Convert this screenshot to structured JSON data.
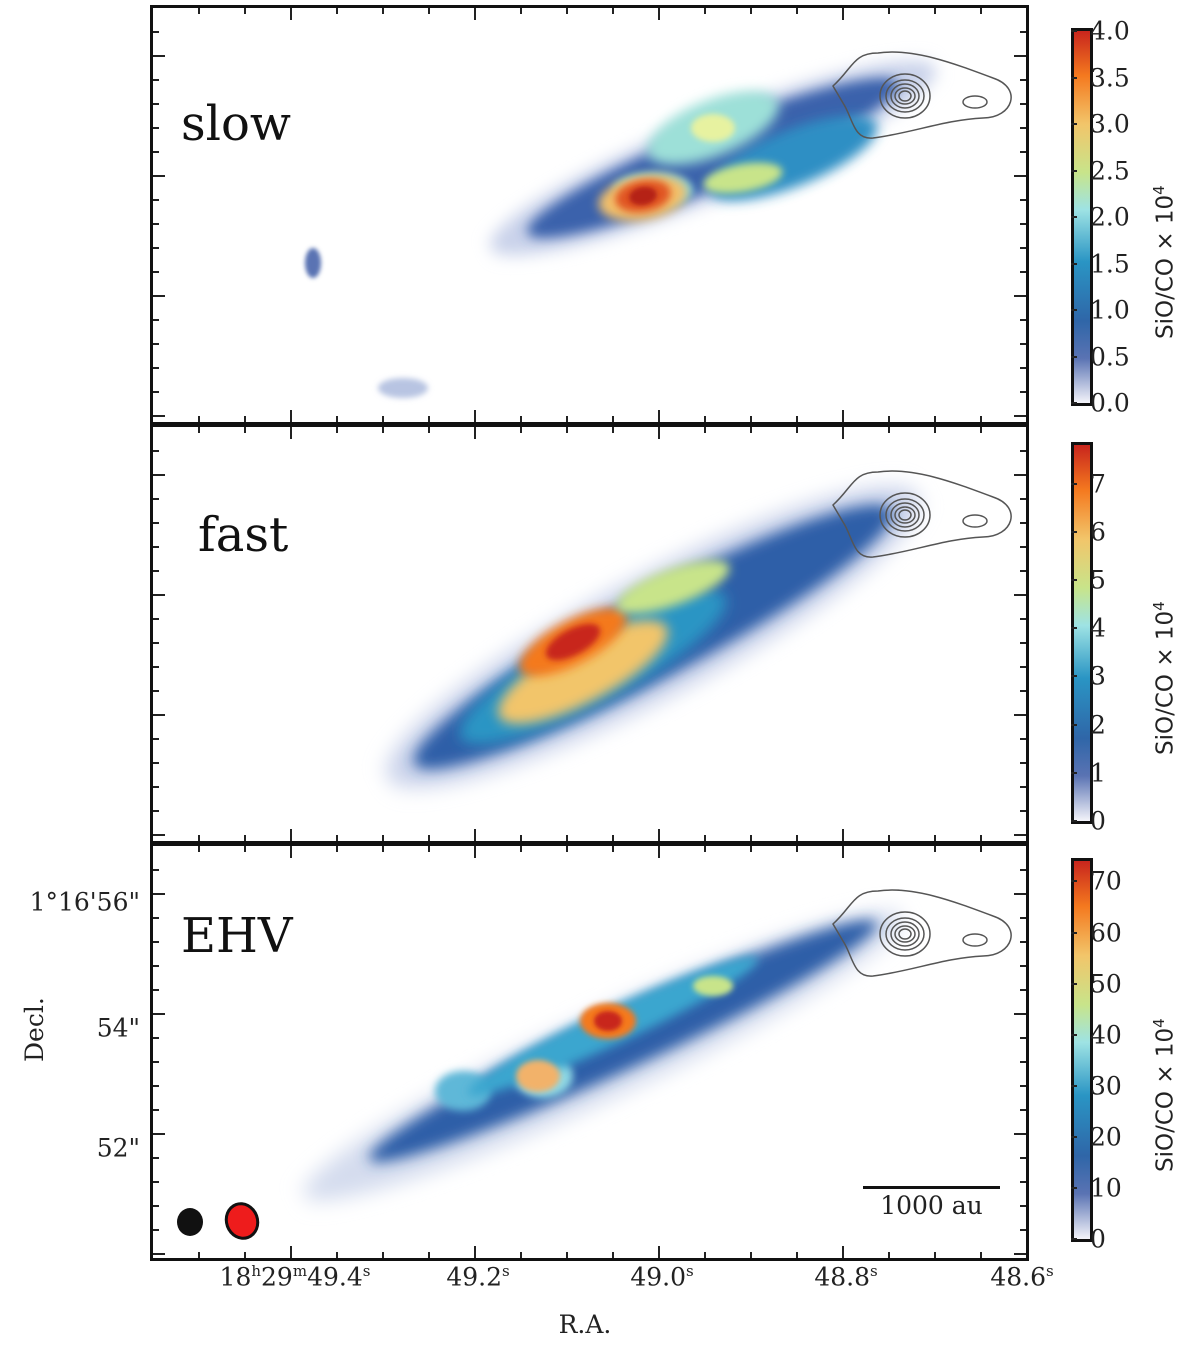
{
  "chart_data": [
    {
      "type": "heatmap",
      "panel": "slow",
      "colorbar": {
        "label": "SiO/CO × 10",
        "label_exp": "4",
        "range": [
          0,
          4.0
        ],
        "ticks": [
          "0.0",
          "0.5",
          "1.0",
          "1.5",
          "2.0",
          "2.5",
          "3.0",
          "3.5",
          "4.0"
        ],
        "tick_values": [
          0,
          0.5,
          1,
          1.5,
          2,
          2.5,
          3,
          3.5,
          4
        ]
      },
      "peak_value": 3.9
    },
    {
      "type": "heatmap",
      "panel": "fast",
      "colorbar": {
        "label": "SiO/CO × 10",
        "label_exp": "4",
        "range": [
          0,
          7.8
        ],
        "ticks": [
          "0",
          "1",
          "2",
          "3",
          "4",
          "5",
          "6",
          "7"
        ],
        "tick_values": [
          0,
          1,
          2,
          3,
          4,
          5,
          6,
          7
        ]
      },
      "peak_value": 7.5
    },
    {
      "type": "heatmap",
      "panel": "EHV",
      "colorbar": {
        "label": "SiO/CO × 10",
        "label_exp": "4",
        "range": [
          0,
          74
        ],
        "ticks": [
          "0",
          "10",
          "20",
          "30",
          "40",
          "50",
          "60",
          "70"
        ],
        "tick_values": [
          0,
          10,
          20,
          30,
          40,
          50,
          60,
          70
        ]
      },
      "peak_value": 72
    }
  ],
  "panels": [
    "slow",
    "fast",
    "EHV"
  ],
  "xaxis": {
    "label": "R.A.",
    "ticks": [
      {
        "h": "18",
        "m": "29",
        "s": "49.4"
      },
      {
        "s": "49.2"
      },
      {
        "s": "49.0"
      },
      {
        "s": "48.8"
      },
      {
        "s": "48.6"
      }
    ]
  },
  "yaxis": {
    "label": "Decl.",
    "ticks": [
      "1°16'56\"",
      "54\"",
      "52\""
    ]
  },
  "scalebar": "1000 au",
  "colors": {
    "beam_black": "#111111",
    "beam_red": "#ee1c1c",
    "contour": "#555555"
  }
}
